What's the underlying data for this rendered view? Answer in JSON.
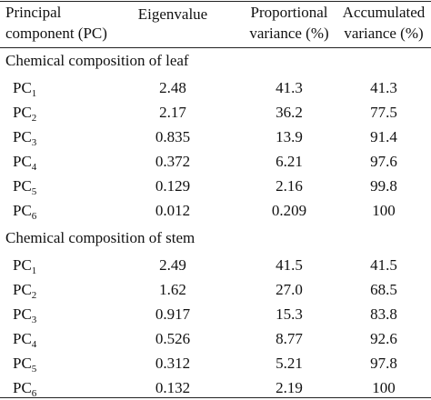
{
  "table": {
    "header": [
      [
        "Principal",
        "component (PC)"
      ],
      [
        "Eigenvalue"
      ],
      [
        "Proportional",
        "variance (%)"
      ],
      [
        "Accumulated",
        "variance (%)"
      ]
    ],
    "sections": [
      {
        "title": "Chemical composition of leaf",
        "rows": [
          {
            "pc": "PC",
            "sub": "1",
            "cells": [
              "2.48",
              "41.3",
              "41.3"
            ]
          },
          {
            "pc": "PC",
            "sub": "2",
            "cells": [
              "2.17",
              "36.2",
              "77.5"
            ]
          },
          {
            "pc": "PC",
            "sub": "3",
            "cells": [
              "0.835",
              "13.9",
              "91.4"
            ]
          },
          {
            "pc": "PC",
            "sub": "4",
            "cells": [
              "0.372",
              "6.21",
              "97.6"
            ]
          },
          {
            "pc": "PC",
            "sub": "5",
            "cells": [
              "0.129",
              "2.16",
              "99.8"
            ]
          },
          {
            "pc": "PC",
            "sub": "6",
            "cells": [
              "0.012",
              "0.209",
              "100"
            ]
          }
        ]
      },
      {
        "title": "Chemical composition of stem",
        "rows": [
          {
            "pc": "PC",
            "sub": "1",
            "cells": [
              "2.49",
              "41.5",
              "41.5"
            ]
          },
          {
            "pc": "PC",
            "sub": "2",
            "cells": [
              "1.62",
              "27.0",
              "68.5"
            ]
          },
          {
            "pc": "PC",
            "sub": "3",
            "cells": [
              "0.917",
              "15.3",
              "83.8"
            ]
          },
          {
            "pc": "PC",
            "sub": "4",
            "cells": [
              "0.526",
              "8.77",
              "92.6"
            ]
          },
          {
            "pc": "PC",
            "sub": "5",
            "cells": [
              "0.312",
              "5.21",
              "97.8"
            ]
          },
          {
            "pc": "PC",
            "sub": "6",
            "cells": [
              "0.132",
              "2.19",
              "100"
            ]
          }
        ]
      }
    ]
  }
}
